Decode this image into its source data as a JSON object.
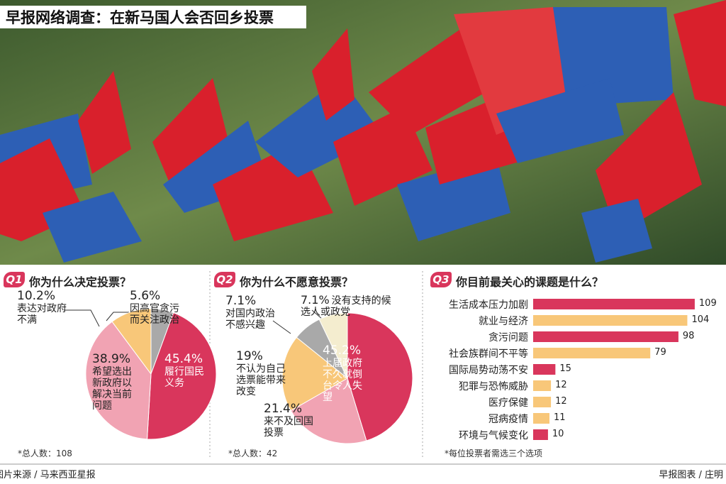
{
  "title": "早报网络调查：在新马国人会否回乡投票",
  "credits": {
    "photo": "图片来源 / 马来西亚星报",
    "graphic": "早报图表 / 庄明"
  },
  "chart_data": [
    {
      "type": "pie",
      "label": "Q1",
      "title": "你为什么决定投票？",
      "note": "*总人数：108",
      "categories": [
        "因高官贪污而关注政治",
        "履行国民义务",
        "希望选出新政府以解决当前问题",
        "表达对政府不满"
      ],
      "values": [
        5.6,
        45.4,
        38.9,
        10.2
      ],
      "value_labels": [
        "5.6%",
        "45.4%",
        "38.9%",
        "10.2%"
      ],
      "colors": [
        "#a9a9a9",
        "#d9365c",
        "#f1a3b3",
        "#f8c779"
      ]
    },
    {
      "type": "pie",
      "label": "Q2",
      "title": "你为什么不愿意投票？",
      "note": "*总人数：42",
      "categories": [
        "上届政府不久就倒台令人失望",
        "来不及回国投票",
        "不认为自己选票能带来改变",
        "对国内政治不感兴趣",
        "没有支持的候选人或政党"
      ],
      "values": [
        45.2,
        21.4,
        19,
        7.1,
        7.1
      ],
      "value_labels": [
        "45.2%",
        "21.4%",
        "19%",
        "7.1%",
        "7.1%"
      ],
      "colors": [
        "#d9365c",
        "#f1a3b3",
        "#f8c779",
        "#a9a9a9",
        "#f4edcf"
      ]
    },
    {
      "type": "hbar",
      "label": "Q3",
      "title": "你目前最关心的课题是什么？",
      "note": "*每位投票者需选三个选项",
      "categories": [
        "生活成本压力加剧",
        "就业与经济",
        "贪污问题",
        "社会族群间不平等",
        "国际局势动荡不安",
        "犯罪与恐怖威胁",
        "医疗保健",
        "冠病疫情",
        "环境与气候变化"
      ],
      "values": [
        109,
        104,
        98,
        79,
        15,
        12,
        12,
        11,
        10
      ],
      "colors": [
        "#d9365c",
        "#f8c779",
        "#d9365c",
        "#f8c779",
        "#d9365c",
        "#f8c779",
        "#f8c779",
        "#f8c779",
        "#d9365c"
      ],
      "xlim": [
        0,
        110
      ]
    }
  ]
}
